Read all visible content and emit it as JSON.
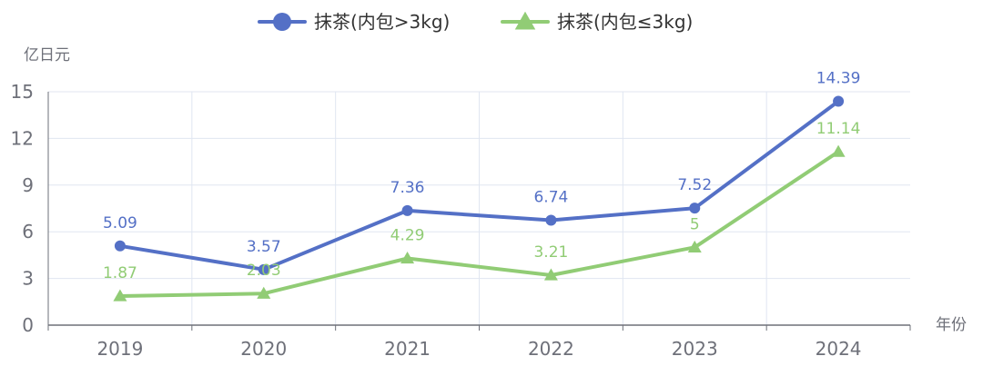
{
  "chart_data": {
    "type": "line",
    "categories": [
      "2019",
      "2020",
      "2021",
      "2022",
      "2023",
      "2024"
    ],
    "series": [
      {
        "name": "抹茶(内包>3kg)",
        "values": [
          5.09,
          3.57,
          7.36,
          6.74,
          7.52,
          14.39
        ],
        "color": "#5470c6",
        "marker": "circle"
      },
      {
        "name": "抹茶(内包≤3kg)",
        "values": [
          1.87,
          2.03,
          4.29,
          3.21,
          5,
          11.14
        ],
        "color": "#91cc75",
        "marker": "triangle"
      }
    ],
    "data_labels": [
      [
        "5.09",
        "3.57",
        "7.36",
        "6.74",
        "7.52",
        "14.39"
      ],
      [
        "1.87",
        "2.03",
        "4.29",
        "3.21",
        "5",
        "11.14"
      ]
    ],
    "ylabel": "亿日元",
    "xlabel": "年份",
    "ylim": [
      0,
      15
    ],
    "yticks": [
      "0",
      "3",
      "6",
      "9",
      "12",
      "15"
    ],
    "grid": true,
    "legend": "top-center"
  }
}
